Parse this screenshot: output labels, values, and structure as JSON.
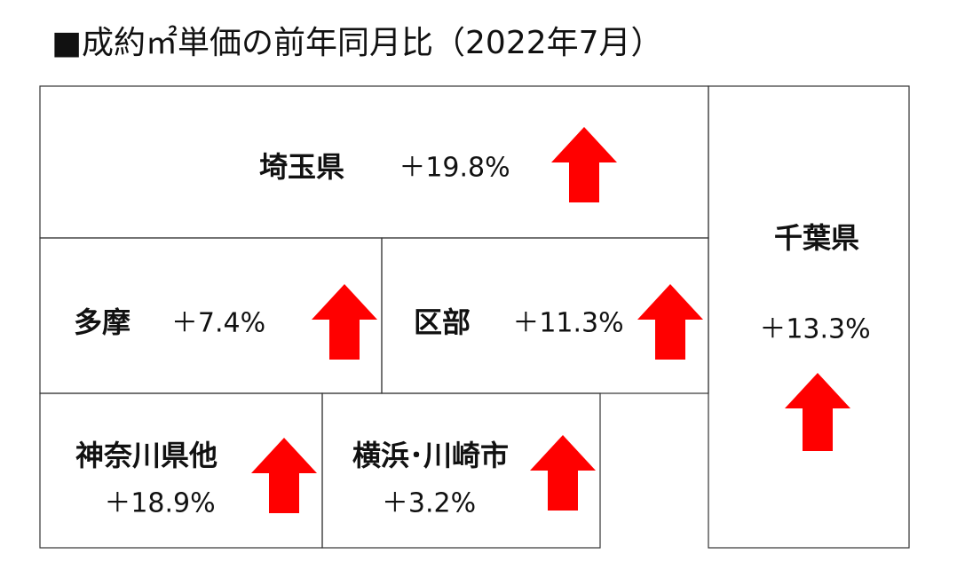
{
  "title": "■成約㎡単価の前年同月比（2022年7月）",
  "regions": [
    {
      "name": "埼玉県",
      "change": "＋19.8%"
    },
    {
      "name": "多摩",
      "change": "＋7.4%"
    },
    {
      "name": "区部",
      "change": "＋11.3%"
    },
    {
      "name": "千葉県",
      "change": "＋13.3%"
    },
    {
      "name": "神奈川県他",
      "change": "＋18.9%"
    },
    {
      "name": "横浜･川崎市",
      "change": "＋3.2%"
    }
  ]
}
